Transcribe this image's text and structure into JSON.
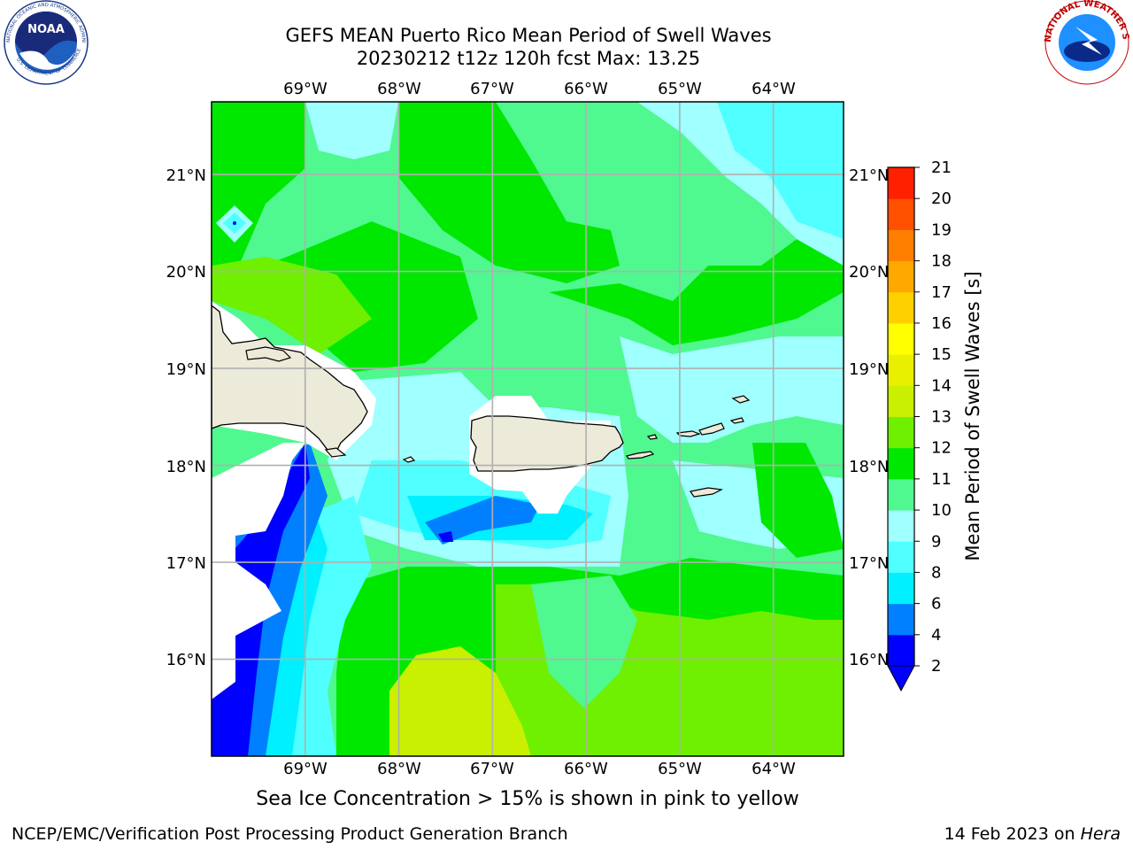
{
  "header": {
    "title_line1": "GEFS MEAN Puerto Rico Mean Period of Swell Waves",
    "title_line2": "20230212 t12z 120h fcst   Max: 13.25"
  },
  "map": {
    "lon_ticks": [
      "69°W",
      "68°W",
      "67°W",
      "66°W",
      "65°W",
      "64°W"
    ],
    "lat_ticks": [
      "21°N",
      "20°N",
      "19°N",
      "18°N",
      "17°N",
      "16°N"
    ],
    "lon_values": [
      -69,
      -68,
      -67,
      -66,
      -65,
      -64
    ],
    "lat_values": [
      21,
      20,
      19,
      18,
      17,
      16
    ],
    "extent": {
      "lon_min": -70.0,
      "lon_max": -63.25,
      "lat_min": 15.0,
      "lat_max": 21.75
    },
    "land_color": "#ecead8",
    "masked_color": "#ffffff",
    "grid_color": "#b0b0b0"
  },
  "colorbar": {
    "label": "Mean Period of Swell Waves [s]",
    "ticks": [
      "21",
      "20",
      "19",
      "18",
      "17",
      "16",
      "15",
      "14",
      "13",
      "12",
      "11",
      "10",
      "9",
      "8",
      "6",
      "4",
      "2"
    ],
    "levels": [
      2,
      4,
      6,
      8,
      9,
      10,
      11,
      12,
      13,
      14,
      15,
      16,
      17,
      18,
      19,
      20,
      21
    ],
    "colors": [
      "#0000ff",
      "#0080ff",
      "#00f0ff",
      "#50ffff",
      "#a0ffff",
      "#50f890",
      "#00e800",
      "#6ef000",
      "#c8f000",
      "#e8f000",
      "#ffff00",
      "#ffd000",
      "#ffa800",
      "#ff8000",
      "#ff5000",
      "#ff2000"
    ],
    "under_color": "#0000ff"
  },
  "caption": "Sea Ice Concentration > 15% is shown in pink to yellow",
  "footer": {
    "left": "NCEP/EMC/Verification Post Processing Product Generation Branch",
    "right_date": "14 Feb 2023 on ",
    "right_host": "Hera"
  },
  "logos": {
    "noaa_text": "NOAA",
    "noaa_ring": "NATIONAL OCEANIC AND ATMOSPHERIC ADMINISTRATION",
    "noaa_ring_bottom": "U.S. DEPARTMENT OF COMMERCE",
    "nws_ring": "NATIONAL WEATHER SERVICE"
  }
}
